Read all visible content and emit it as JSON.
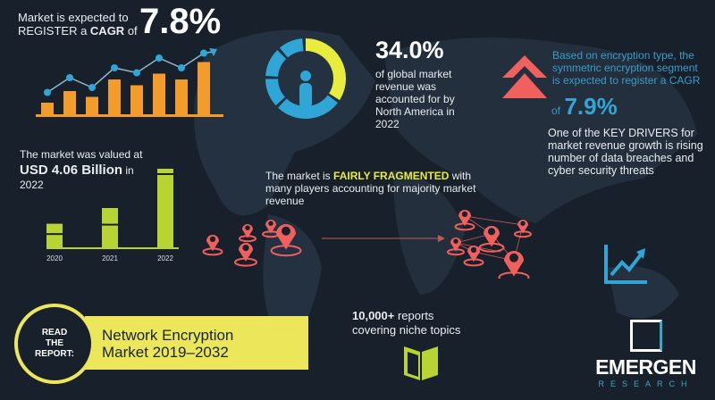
{
  "cagr": {
    "line1": "Market is expected to",
    "line2_prefix": "REGISTER a ",
    "line2_bold": "CAGR",
    "line2_suffix": " of",
    "value": "7.8%"
  },
  "trend_chart": {
    "bars": [
      2,
      4,
      3,
      6,
      5,
      7,
      6,
      9
    ],
    "points": [
      3,
      6,
      4,
      8,
      7,
      10,
      8,
      11
    ]
  },
  "north_america": {
    "value": "34.0%",
    "text": [
      "of global market",
      "revenue was",
      "accounted for by",
      "North America in",
      "2022"
    ],
    "share": 0.34
  },
  "segment": {
    "text": [
      "Based on encryption type, the",
      "symmetric encryption segment",
      "is expected to register a CAGR"
    ],
    "of": "of",
    "value": "7.9%"
  },
  "drivers": {
    "text": [
      "One of the KEY DRIVERS for",
      "market revenue growth is rising",
      "number of data breaches and",
      "cyber security threats"
    ]
  },
  "valuation": {
    "line1": "The market was valued at",
    "value": "USD  4.06 Billion",
    "in": " in",
    "year": "2022"
  },
  "year_chart": {
    "categories": [
      "2020",
      "2021",
      "2022"
    ],
    "relative_heights": [
      0.3,
      0.5,
      1.0
    ]
  },
  "fragmented": {
    "prefix": "The market is ",
    "highlight": "FAIRLY FRAGMENTED",
    "suffix": " with",
    "line2": "many players accounting for majority market",
    "line3": "revenue"
  },
  "read_report": {
    "badge": [
      "READ",
      "THE",
      "REPORT:"
    ],
    "title1": "Network Encryption",
    "title2": "Market 2019–2032"
  },
  "reports": {
    "line1_bold": "10,000+",
    "line1_rest": " reports",
    "line2": "covering niche topics"
  },
  "logo": {
    "name": "EMERGEN",
    "sub": "RESEARCH"
  },
  "colors": {
    "background": "#18212b",
    "orange": "#f39c2a",
    "blue": "#2fa6d6",
    "yellow": "#e8ec3c",
    "lime": "#b8d432",
    "red": "#f0605e"
  }
}
